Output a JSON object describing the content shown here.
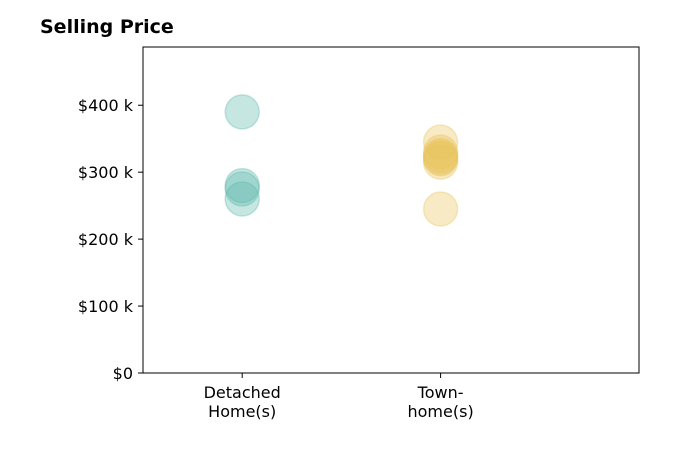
{
  "chart_data": {
    "type": "scatter",
    "title": "Selling Price",
    "xlabel": "",
    "ylabel": "",
    "categories": [
      "Detached\nHome(s)",
      "Town-\nhome(s)"
    ],
    "yticks": [
      "$0",
      "$100 k",
      "$200 k",
      "$300 k",
      "$400 k"
    ],
    "ytick_values": [
      0,
      100,
      200,
      300,
      400
    ],
    "ylim": [
      0,
      487
    ],
    "xlim": [
      -0.5,
      2
    ],
    "grid": false,
    "series": [
      {
        "category_index": 0,
        "color": "#5cb8ac",
        "values": [
          390,
          280,
          275,
          260
        ]
      },
      {
        "category_index": 1,
        "color": "#e8c45a",
        "values": [
          345,
          330,
          325,
          322,
          320,
          315,
          245
        ]
      }
    ]
  }
}
